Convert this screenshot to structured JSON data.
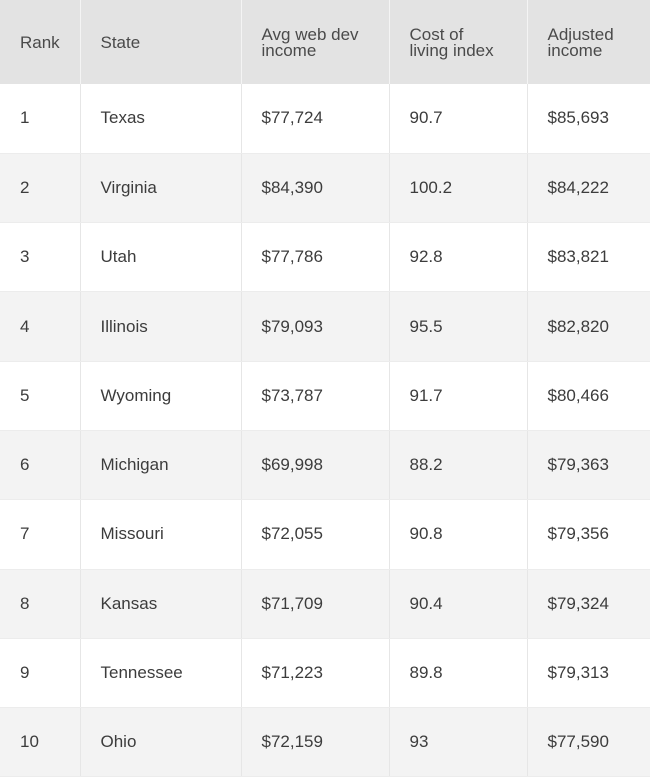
{
  "table": {
    "headers": {
      "rank": "Rank",
      "state": "State",
      "income_line1": "Avg web dev",
      "income_line2": "income",
      "col_line1": "Cost of",
      "col_line2": "living index",
      "adj_line1": "Adjusted",
      "adj_line2": "income"
    },
    "rows": [
      {
        "rank": "1",
        "state": "Texas",
        "income": "$77,724",
        "col": "90.7",
        "adjusted": "$85,693"
      },
      {
        "rank": "2",
        "state": "Virginia",
        "income": "$84,390",
        "col": "100.2",
        "adjusted": "$84,222"
      },
      {
        "rank": "3",
        "state": "Utah",
        "income": "$77,786",
        "col": "92.8",
        "adjusted": "$83,821"
      },
      {
        "rank": "4",
        "state": "Illinois",
        "income": "$79,093",
        "col": "95.5",
        "adjusted": "$82,820"
      },
      {
        "rank": "5",
        "state": "Wyoming",
        "income": "$73,787",
        "col": "91.7",
        "adjusted": "$80,466"
      },
      {
        "rank": "6",
        "state": "Michigan",
        "income": "$69,998",
        "col": "88.2",
        "adjusted": "$79,363"
      },
      {
        "rank": "7",
        "state": "Missouri",
        "income": "$72,055",
        "col": "90.8",
        "adjusted": "$79,356"
      },
      {
        "rank": "8",
        "state": "Kansas",
        "income": "$71,709",
        "col": "90.4",
        "adjusted": "$79,324"
      },
      {
        "rank": "9",
        "state": "Tennessee",
        "income": "$71,223",
        "col": "89.8",
        "adjusted": "$79,313"
      },
      {
        "rank": "10",
        "state": "Ohio",
        "income": "$72,159",
        "col": "93",
        "adjusted": "$77,590"
      }
    ]
  }
}
